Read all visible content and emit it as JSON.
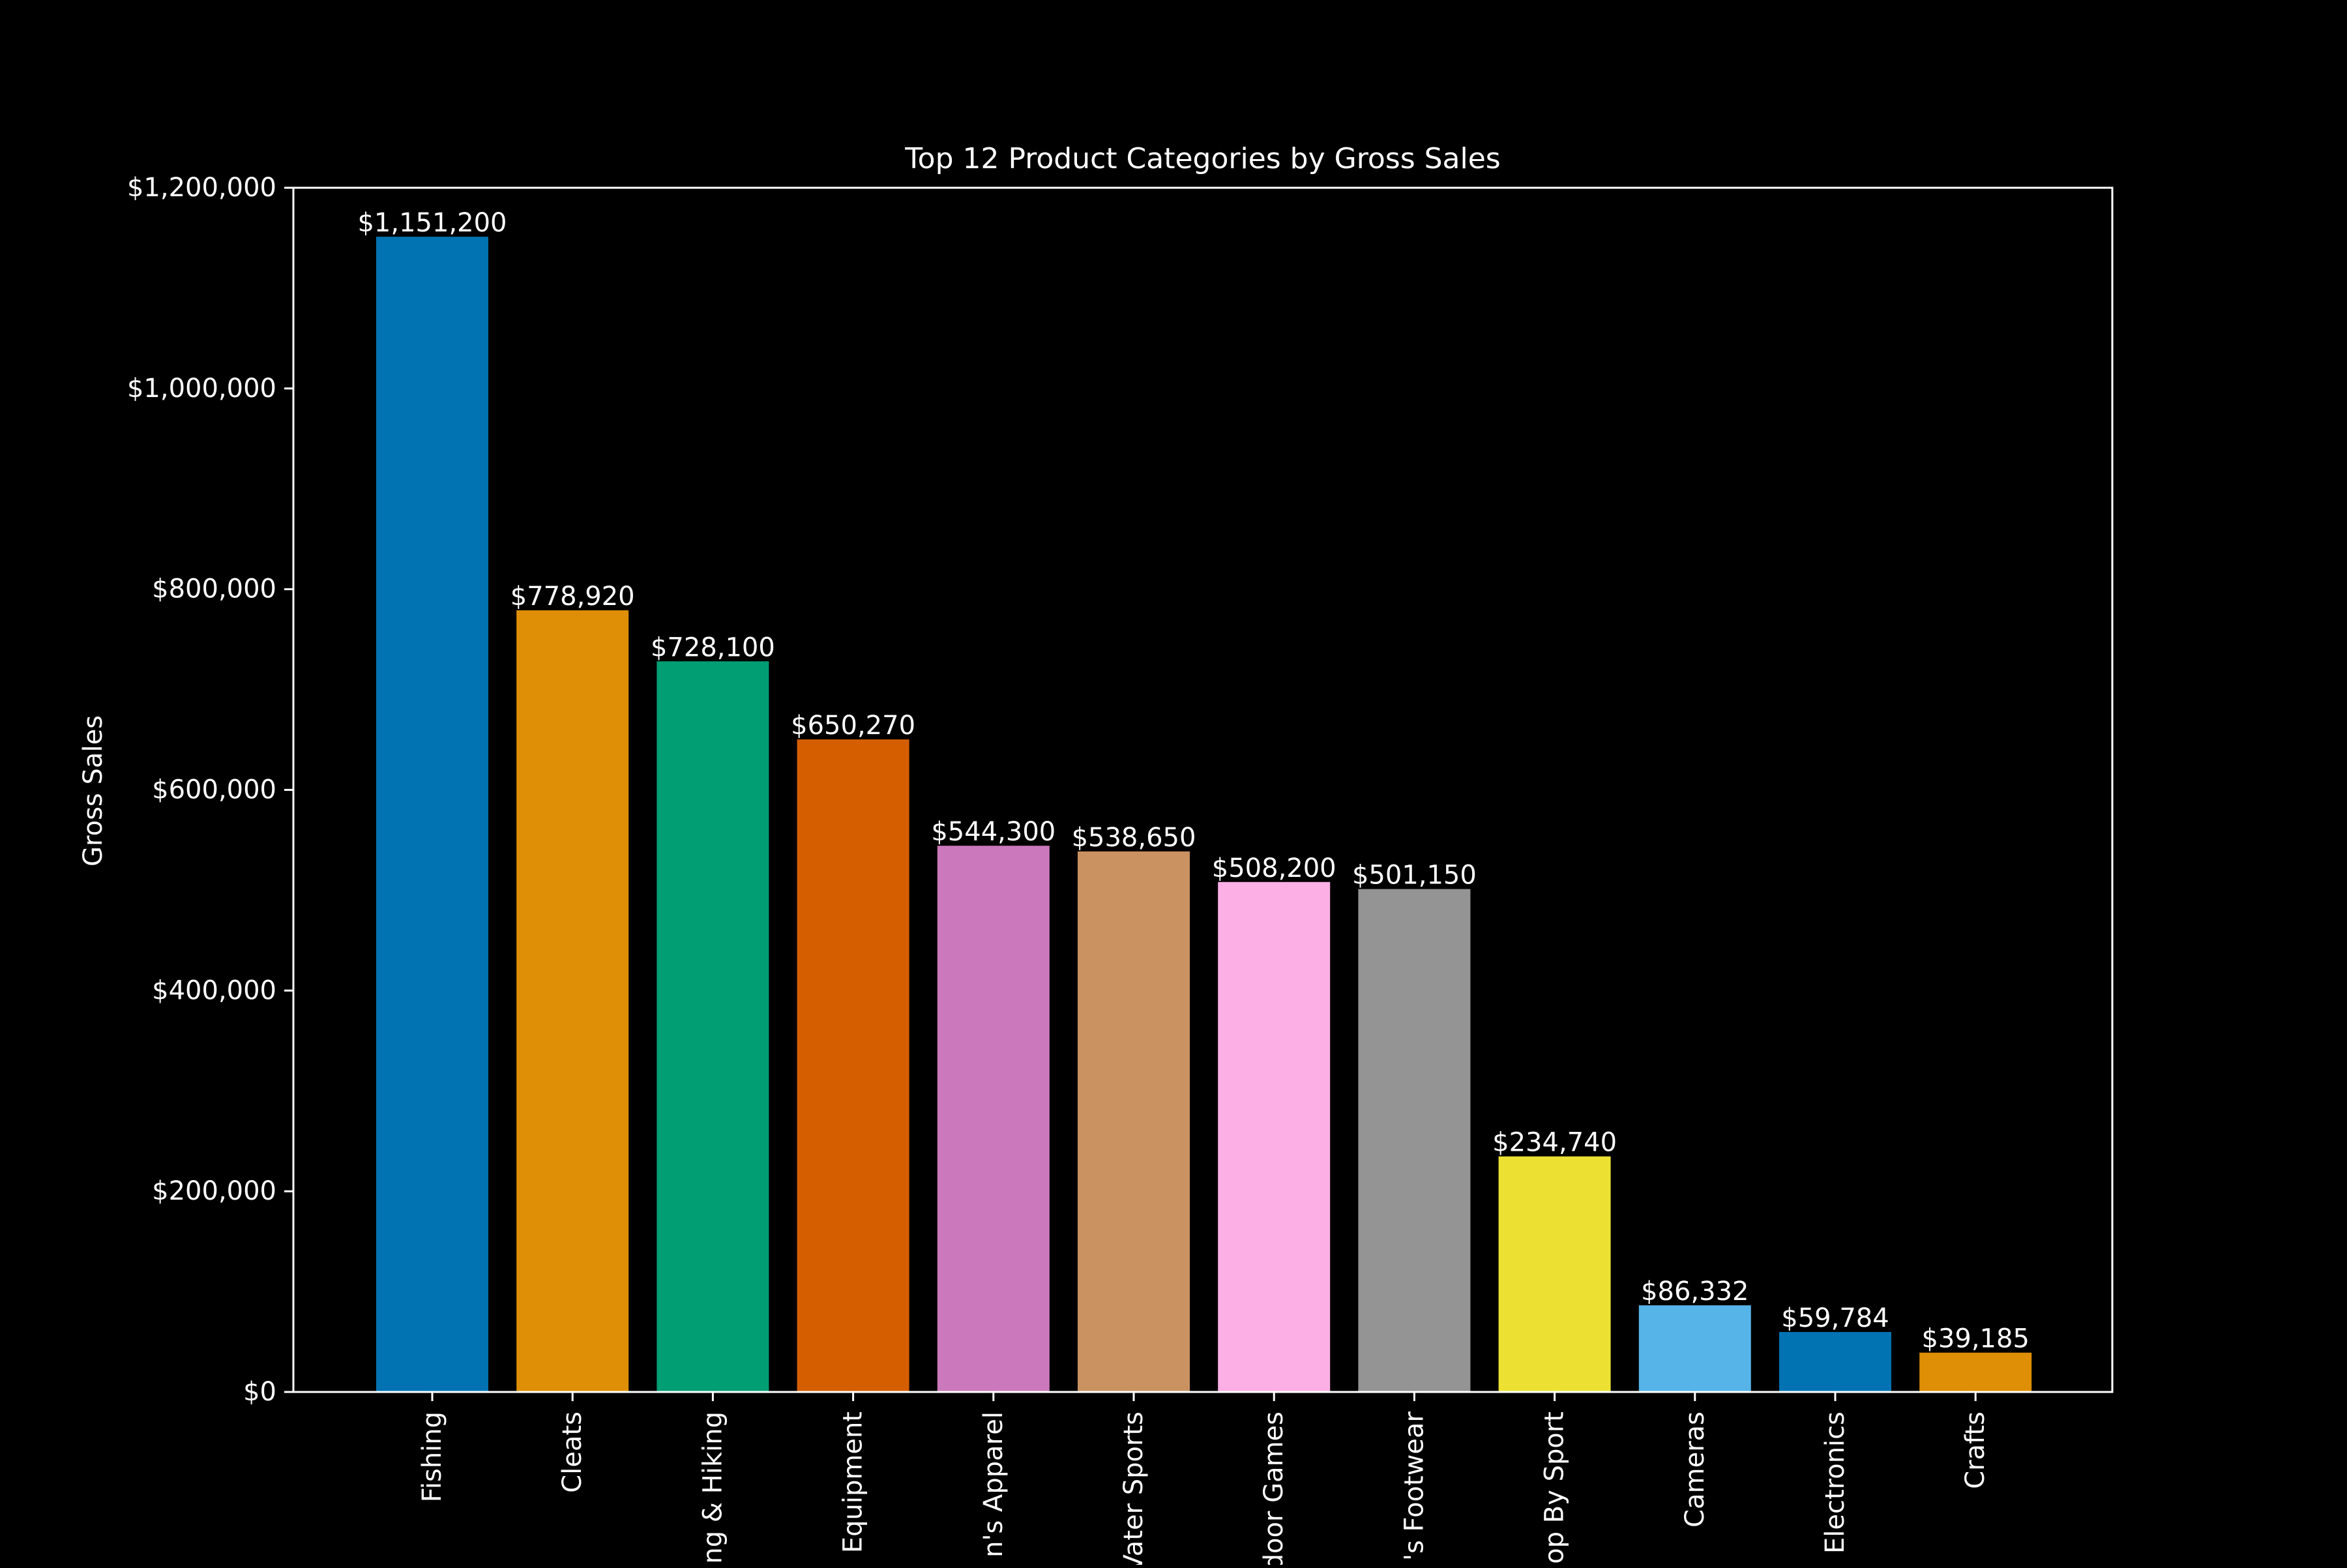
{
  "chart_data": {
    "type": "bar",
    "title": "Top 12 Product Categories by Gross Sales",
    "xlabel": "",
    "ylabel": "Gross Sales",
    "ylim": [
      0,
      1200000
    ],
    "yticks": [
      0,
      200000,
      400000,
      600000,
      800000,
      1000000,
      1200000
    ],
    "ytick_labels": [
      "$0",
      "$200,000",
      "$400,000",
      "$600,000",
      "$800,000",
      "$1,000,000",
      "$1,200,000"
    ],
    "categories": [
      "Fishing",
      "Cleats",
      "Camping & Hiking",
      "Cardio Equipment",
      "Women's Apparel",
      "Water Sports",
      "Indoor/Outdoor Games",
      "Men's Footwear",
      "Shop By Sport",
      "Cameras",
      "Electronics",
      "Crafts"
    ],
    "visible_tick_labels": [
      "Fishing",
      "Cleats",
      "ng & Hiking",
      "Equipment",
      "n's Apparel",
      "Vater Sports",
      "door Games",
      "'s Footwear",
      "op By Sport",
      "Cameras",
      "Electronics",
      "Crafts"
    ],
    "values": [
      1151200,
      778920,
      728100,
      650270,
      544300,
      538650,
      508200,
      501150,
      234740,
      86332,
      59784,
      39185
    ],
    "value_labels": [
      "$1,151,200",
      "$778,920",
      "$728,100",
      "$650,270",
      "$544,300",
      "$538,650",
      "$508,200",
      "$501,150",
      "$234,740",
      "$86,332",
      "$59,784",
      "$39,185"
    ],
    "colors": [
      "#0173b2",
      "#de8f05",
      "#029e73",
      "#d55e00",
      "#cc78bc",
      "#ca9161",
      "#fbafe4",
      "#949494",
      "#ece133",
      "#56b4e9",
      "#0173b2",
      "#de8f05"
    ],
    "grid": false,
    "legend": "none",
    "background": "#000000",
    "foreground": "#ffffff"
  }
}
